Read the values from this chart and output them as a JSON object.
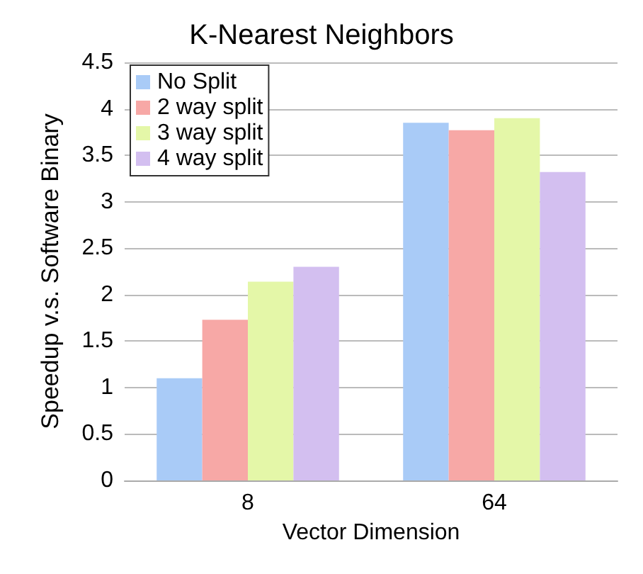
{
  "chart_data": {
    "type": "bar",
    "title": "K-Nearest Neighbors",
    "xlabel": "Vector Dimension",
    "ylabel": "Speedup v.s. Software Binary",
    "categories": [
      "8",
      "64"
    ],
    "series": [
      {
        "name": "No Split",
        "color": "#a9cbf7",
        "values": [
          1.1,
          3.85
        ]
      },
      {
        "name": "2 way split",
        "color": "#f7a8a6",
        "values": [
          1.73,
          3.77
        ]
      },
      {
        "name": "3 way split",
        "color": "#e4f7a8",
        "values": [
          2.14,
          3.9
        ]
      },
      {
        "name": "4 way split",
        "color": "#d3bff0",
        "values": [
          2.3,
          3.32
        ]
      }
    ],
    "ylim": [
      0,
      4.5
    ],
    "yticks": [
      0,
      0.5,
      1,
      1.5,
      2,
      2.5,
      3,
      3.5,
      4,
      4.5
    ],
    "grid": "y",
    "legend": "top left"
  }
}
